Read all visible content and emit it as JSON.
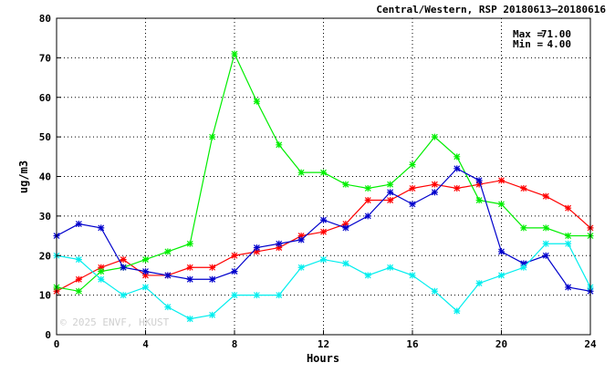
{
  "chart_data": {
    "type": "line",
    "title": "Central/Western, RSP 20180613–20180616",
    "xlabel": "Hours",
    "ylabel": "ug/m3",
    "xlim": [
      0,
      24
    ],
    "ylim": [
      0,
      80
    ],
    "xticks": [
      0,
      4,
      8,
      12,
      16,
      20,
      24
    ],
    "yticks": [
      0,
      10,
      20,
      30,
      40,
      50,
      60,
      70,
      80
    ],
    "grid": true,
    "stats": {
      "max_label": "Max =",
      "max_value": "71.00",
      "min_label": "Min =",
      "min_value": "4.00"
    },
    "watermark": "© 2025  ENVF, HKUST",
    "x": [
      0,
      1,
      2,
      3,
      4,
      5,
      6,
      7,
      8,
      9,
      10,
      11,
      12,
      13,
      14,
      15,
      16,
      17,
      18,
      19,
      20,
      21,
      22,
      23,
      24
    ],
    "series": [
      {
        "color": "#ff0000",
        "values": [
          11,
          14,
          17,
          19,
          15,
          15,
          17,
          17,
          20,
          21,
          22,
          25,
          26,
          28,
          34,
          34,
          37,
          38,
          37,
          38,
          39,
          37,
          35,
          32,
          27
        ]
      },
      {
        "color": "#00ee00",
        "values": [
          12,
          11,
          16,
          17,
          19,
          21,
          23,
          50,
          71,
          59,
          48,
          41,
          41,
          38,
          37,
          38,
          43,
          50,
          45,
          34,
          33,
          27,
          27,
          25,
          25
        ]
      },
      {
        "color": "#0000cc",
        "values": [
          25,
          28,
          27,
          17,
          16,
          15,
          14,
          14,
          16,
          22,
          23,
          24,
          29,
          27,
          30,
          36,
          33,
          36,
          42,
          39,
          21,
          18,
          20,
          12,
          11
        ]
      },
      {
        "color": "#00eeee",
        "values": [
          20,
          19,
          14,
          10,
          12,
          7,
          4,
          5,
          10,
          10,
          10,
          17,
          19,
          18,
          15,
          17,
          15,
          11,
          6,
          13,
          15,
          17,
          23,
          23,
          12
        ]
      }
    ]
  }
}
